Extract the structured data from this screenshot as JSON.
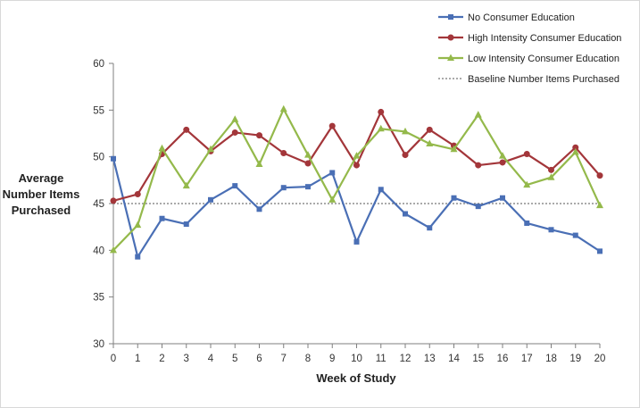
{
  "chart_data": {
    "type": "line",
    "title": "",
    "xlabel": "Week of Study",
    "ylabel_lines": [
      "Average",
      "Number Items",
      "Purchased"
    ],
    "x": [
      0,
      1,
      2,
      3,
      4,
      5,
      6,
      7,
      8,
      9,
      10,
      11,
      12,
      13,
      14,
      15,
      16,
      17,
      18,
      19,
      20
    ],
    "xlim": [
      0,
      20
    ],
    "ylim": [
      30,
      60
    ],
    "yticks": [
      30,
      35,
      40,
      45,
      50,
      55,
      60
    ],
    "grid": false,
    "legend_position": "top-right",
    "series": [
      {
        "name": "No Consumer Education",
        "color": "#4a6fb5",
        "marker": "square",
        "values": [
          49.8,
          39.3,
          43.4,
          42.8,
          45.4,
          46.9,
          44.4,
          46.7,
          46.8,
          48.3,
          40.9,
          46.5,
          43.9,
          42.4,
          45.6,
          44.7,
          45.6,
          42.9,
          42.2,
          41.6,
          39.9
        ]
      },
      {
        "name": "High Intensity Consumer Education",
        "color": "#a3363a",
        "marker": "circle",
        "values": [
          45.3,
          46.0,
          50.3,
          52.9,
          50.6,
          52.6,
          52.3,
          50.4,
          49.3,
          53.3,
          49.1,
          54.8,
          50.2,
          52.9,
          51.2,
          49.1,
          49.4,
          50.3,
          48.6,
          51.0,
          48.0
        ]
      },
      {
        "name": "Low Intensity Consumer Education",
        "color": "#94b94b",
        "marker": "triangle",
        "values": [
          40.0,
          42.7,
          50.9,
          46.9,
          50.8,
          54.0,
          49.2,
          55.1,
          50.2,
          45.4,
          50.1,
          53.0,
          52.7,
          51.4,
          50.8,
          54.5,
          50.1,
          47.0,
          47.8,
          50.5,
          44.8
        ]
      }
    ],
    "reference_lines": [
      {
        "name": "Baseline Number Items Purchased",
        "value": 45.0,
        "color": "#555555",
        "style": "dotted"
      }
    ]
  }
}
